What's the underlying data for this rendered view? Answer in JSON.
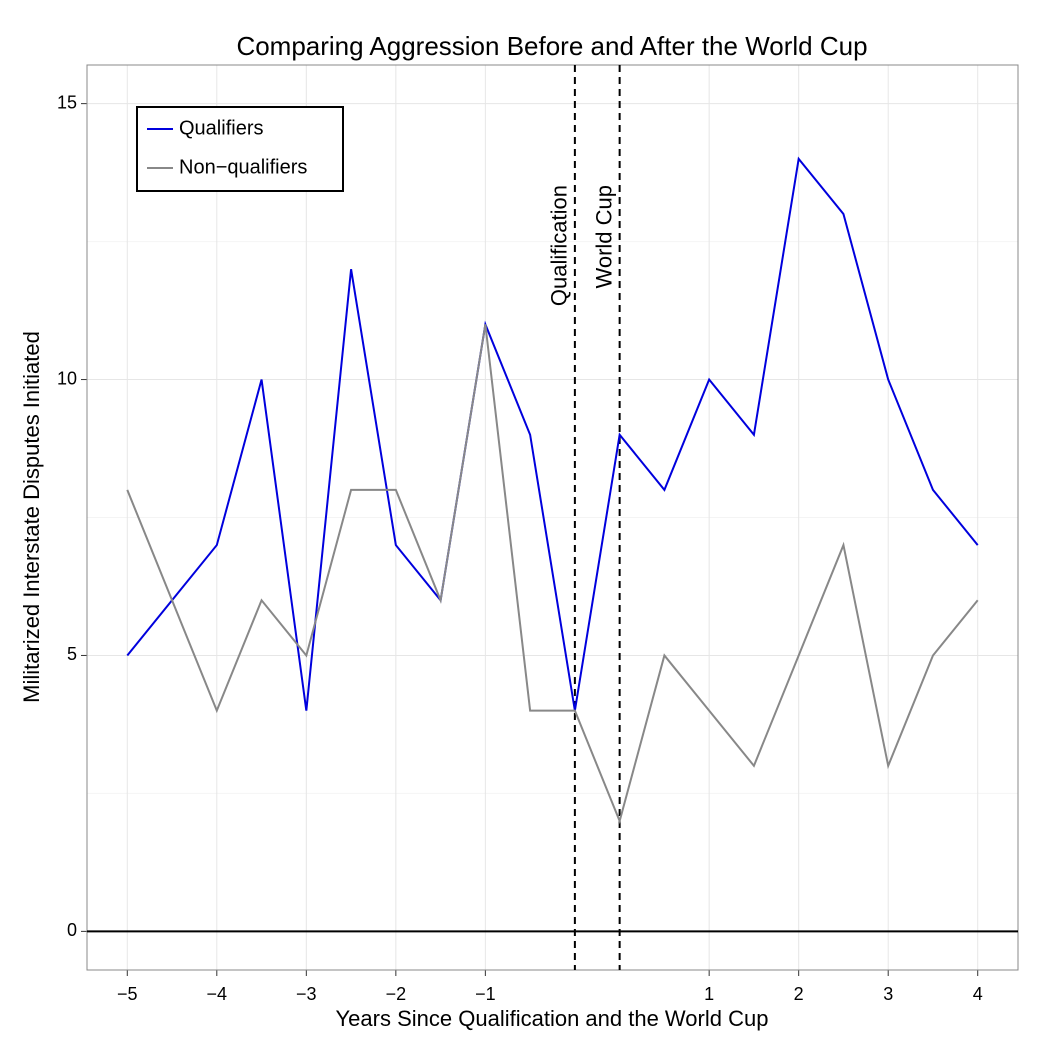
{
  "chart_data": {
    "type": "line",
    "title": "Comparing Aggression Before and After the World Cup",
    "x_label": "Years Since Qualification and the World Cup",
    "y_label": "Militarized Interstate Disputes Initiated",
    "x": [
      -5,
      -4.5,
      -4,
      -3.5,
      -3,
      -2.5,
      -2,
      -1.5,
      -1,
      -0.5,
      0,
      0.5,
      1,
      1.5,
      2,
      2.5,
      3,
      3.5,
      4,
      4.5
    ],
    "series": [
      {
        "name": "Qualifiers",
        "color": "#0000dd",
        "values": [
          5,
          6,
          7,
          10,
          4,
          12,
          7,
          6,
          11,
          9,
          4,
          9,
          8,
          10,
          9,
          14,
          13,
          10,
          8,
          7
        ]
      },
      {
        "name": "Non−qualifiers",
        "color": "#888888",
        "values": [
          8,
          6,
          4,
          6,
          5,
          8,
          8,
          6,
          11,
          4,
          4,
          2,
          5,
          4,
          3,
          5,
          7,
          3,
          5,
          6
        ]
      }
    ],
    "xlim": [
      -5.45,
      4.95
    ],
    "ylim": [
      -0.7,
      15.7
    ],
    "xticks": [
      {
        "value": -5,
        "label": "−5"
      },
      {
        "value": -4,
        "label": "−4"
      },
      {
        "value": -3,
        "label": "−3"
      },
      {
        "value": -2,
        "label": "−2"
      },
      {
        "value": -1,
        "label": "−1"
      },
      {
        "value": 1.5,
        "label": "1"
      },
      {
        "value": 2.5,
        "label": "2"
      },
      {
        "value": 3.5,
        "label": "3"
      },
      {
        "value": 4.5,
        "label": "4"
      }
    ],
    "yticks": [
      0,
      5,
      10,
      15
    ],
    "grid": true,
    "legend": "top-left",
    "hline": 0,
    "annotations": [
      {
        "text": "Qualification",
        "x": 0
      },
      {
        "text": "World Cup",
        "x": 0.5
      }
    ]
  }
}
